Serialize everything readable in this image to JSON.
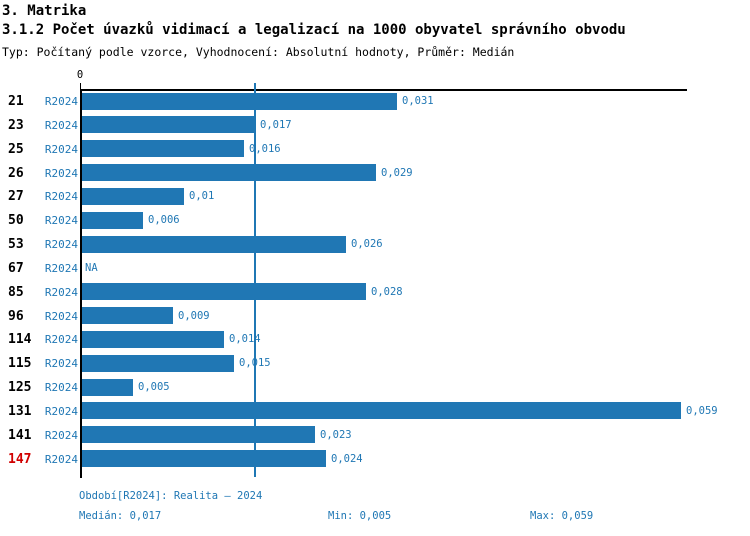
{
  "header": {
    "title": "3. Matrika",
    "subtitle": "3.1.2 Počet úvazků vidimací a legalizací na 1000 obyvatel správního obvodu",
    "meta": "Typ: Počítaný podle vzorce, Vyhodnocení: Absolutní hodnoty, Průměr: Medián"
  },
  "chart_data": {
    "type": "bar",
    "orientation": "horizontal",
    "title": "3.1.2 Počet úvazků vidimací a legalizací na 1000 obyvatel správního obvodu",
    "axis": {
      "x_min": 0,
      "x_max": 0.0595,
      "tick_label": "0",
      "grid": false
    },
    "median_line_value": 0.017,
    "series_label": "R2024",
    "categories": [
      "21",
      "23",
      "25",
      "26",
      "27",
      "50",
      "53",
      "67",
      "85",
      "96",
      "114",
      "115",
      "125",
      "131",
      "141",
      "147"
    ],
    "rows": [
      {
        "id": "21",
        "period": "R2024",
        "value": 0.031,
        "label": "0,031",
        "highlight": false
      },
      {
        "id": "23",
        "period": "R2024",
        "value": 0.017,
        "label": "0,017",
        "highlight": false
      },
      {
        "id": "25",
        "period": "R2024",
        "value": 0.016,
        "label": "0,016",
        "highlight": false
      },
      {
        "id": "26",
        "period": "R2024",
        "value": 0.029,
        "label": "0,029",
        "highlight": false
      },
      {
        "id": "27",
        "period": "R2024",
        "value": 0.01,
        "label": "0,01",
        "highlight": false
      },
      {
        "id": "50",
        "period": "R2024",
        "value": 0.006,
        "label": "0,006",
        "highlight": false
      },
      {
        "id": "53",
        "period": "R2024",
        "value": 0.026,
        "label": "0,026",
        "highlight": false
      },
      {
        "id": "67",
        "period": "R2024",
        "value": null,
        "label": "NA",
        "highlight": false
      },
      {
        "id": "85",
        "period": "R2024",
        "value": 0.028,
        "label": "0,028",
        "highlight": false
      },
      {
        "id": "96",
        "period": "R2024",
        "value": 0.009,
        "label": "0,009",
        "highlight": false
      },
      {
        "id": "114",
        "period": "R2024",
        "value": 0.014,
        "label": "0,014",
        "highlight": false
      },
      {
        "id": "115",
        "period": "R2024",
        "value": 0.015,
        "label": "0,015",
        "highlight": false
      },
      {
        "id": "125",
        "period": "R2024",
        "value": 0.005,
        "label": "0,005",
        "highlight": false
      },
      {
        "id": "131",
        "period": "R2024",
        "value": 0.059,
        "label": "0,059",
        "highlight": false
      },
      {
        "id": "141",
        "period": "R2024",
        "value": 0.023,
        "label": "0,023",
        "highlight": false
      },
      {
        "id": "147",
        "period": "R2024",
        "value": 0.024,
        "label": "0,024",
        "highlight": true
      }
    ]
  },
  "footer": {
    "period_label": "Období[R2024]: Realita – 2024",
    "median_label": "Medián: 0,017",
    "min_label": "Min: 0,005",
    "max_label": "Max: 0,059"
  },
  "colors": {
    "bar": "#2077b4",
    "accent_text": "#1f77b4",
    "highlight_id": "#d10000",
    "axis": "#000000"
  }
}
